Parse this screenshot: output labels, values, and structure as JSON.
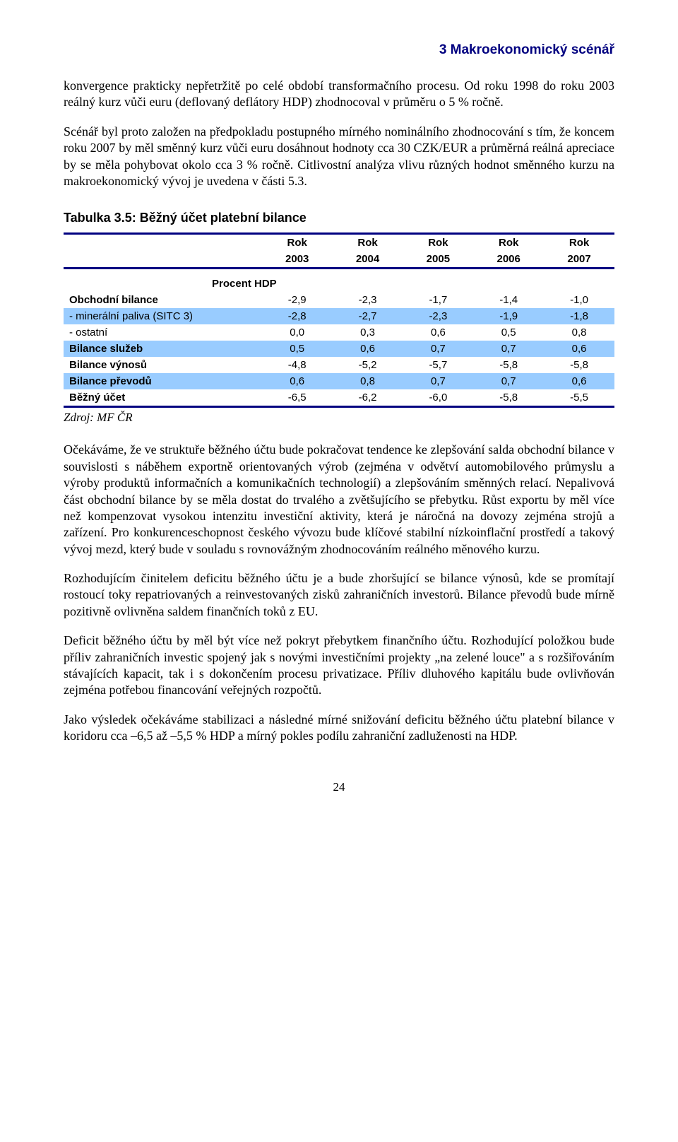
{
  "header": {
    "title": "3 Makroekonomický scénář"
  },
  "paragraphs": {
    "p1": "konvergence prakticky nepřetržitě po celé období transformačního procesu. Od roku 1998 do roku 2003 reálný kurz vůči euru (deflovaný deflátory HDP) zhodnocoval v průměru o 5 % ročně.",
    "p2": "Scénář byl proto založen na předpokladu postupného mírného nominálního zhodnocování s tím, že koncem roku 2007 by měl směnný kurz vůči euru dosáhnout hodnoty cca 30 CZK/EUR a průměrná reálná apreciace by se měla pohybovat okolo cca 3 % ročně. Citlivostní analýza vlivu různých hodnot směnného kurzu na makroekonomický vývoj je uvedena v části 5.3."
  },
  "table": {
    "caption": "Tabulka 3.5: Běžný účet platební bilance",
    "head_label": "Rok",
    "years": [
      "2003",
      "2004",
      "2005",
      "2006",
      "2007"
    ],
    "section_label": "Procent HDP",
    "rows": [
      {
        "label": "Obchodní bilance",
        "bold": true,
        "highlight": false,
        "vals": [
          "-2,9",
          "-2,3",
          "-1,7",
          "-1,4",
          "-1,0"
        ]
      },
      {
        "label": " - minerální paliva (SITC 3)",
        "bold": false,
        "highlight": true,
        "vals": [
          "-2,8",
          "-2,7",
          "-2,3",
          "-1,9",
          "-1,8"
        ]
      },
      {
        "label": " - ostatní",
        "bold": false,
        "highlight": false,
        "vals": [
          "0,0",
          "0,3",
          "0,6",
          "0,5",
          "0,8"
        ]
      },
      {
        "label": "Bilance služeb",
        "bold": true,
        "highlight": true,
        "vals": [
          "0,5",
          "0,6",
          "0,7",
          "0,7",
          "0,6"
        ]
      },
      {
        "label": "Bilance výnosů",
        "bold": true,
        "highlight": false,
        "vals": [
          "-4,8",
          "-5,2",
          "-5,7",
          "-5,8",
          "-5,8"
        ]
      },
      {
        "label": "Bilance převodů",
        "bold": true,
        "highlight": true,
        "vals": [
          "0,6",
          "0,8",
          "0,7",
          "0,7",
          "0,6"
        ]
      },
      {
        "label": "Běžný účet",
        "bold": true,
        "highlight": false,
        "vals": [
          "-6,5",
          "-6,2",
          "-6,0",
          "-5,8",
          "-5,5"
        ]
      }
    ],
    "source": "Zdroj: MF ČR",
    "colors": {
      "rule": "#000080",
      "highlight_bg": "#99ccff"
    }
  },
  "paragraphs2": {
    "p3": "Očekáváme, že ve struktuře běžného účtu bude pokračovat tendence ke zlepšování salda obchodní bilance v souvislosti s náběhem exportně orientovaných výrob (zejména v odvětví automobilového průmyslu a výroby produktů informačních a komunikačních technologií) a zlepšováním směnných relací. Nepalivová část obchodní bilance by se měla dostat do trvalého a zvětšujícího se přebytku. Růst exportu by měl více než kompenzovat vysokou intenzitu investiční aktivity, která je náročná na dovozy zejména strojů a zařízení. Pro konkurenceschopnost českého vývozu bude klíčové stabilní nízkoinflační prostředí a takový vývoj mezd, který bude v souladu s rovnovážným zhodnocováním reálného měnového kurzu.",
    "p4": "Rozhodujícím činitelem deficitu běžného účtu je a bude zhoršující se bilance výnosů, kde se promítají rostoucí toky repatriovaných a reinvestovaných zisků zahraničních investorů. Bilance převodů bude mírně pozitivně ovlivněna saldem finančních toků z EU.",
    "p5": "Deficit běžného účtu by měl být více než pokryt přebytkem finančního účtu. Rozhodující položkou bude příliv zahraničních investic spojený jak s novými investičními projekty „na zelené louce\" a s rozšiřováním stávajících kapacit, tak i s dokončením procesu privatizace. Příliv dluhového kapitálu bude ovlivňován zejména potřebou financování veřejných rozpočtů.",
    "p6": "Jako výsledek očekáváme stabilizaci a následné mírné snižování deficitu běžného účtu platební bilance v koridoru cca –6,5 až –5,5 % HDP a mírný pokles podílu zahraniční zadluženosti na HDP."
  },
  "pagenum": "24"
}
